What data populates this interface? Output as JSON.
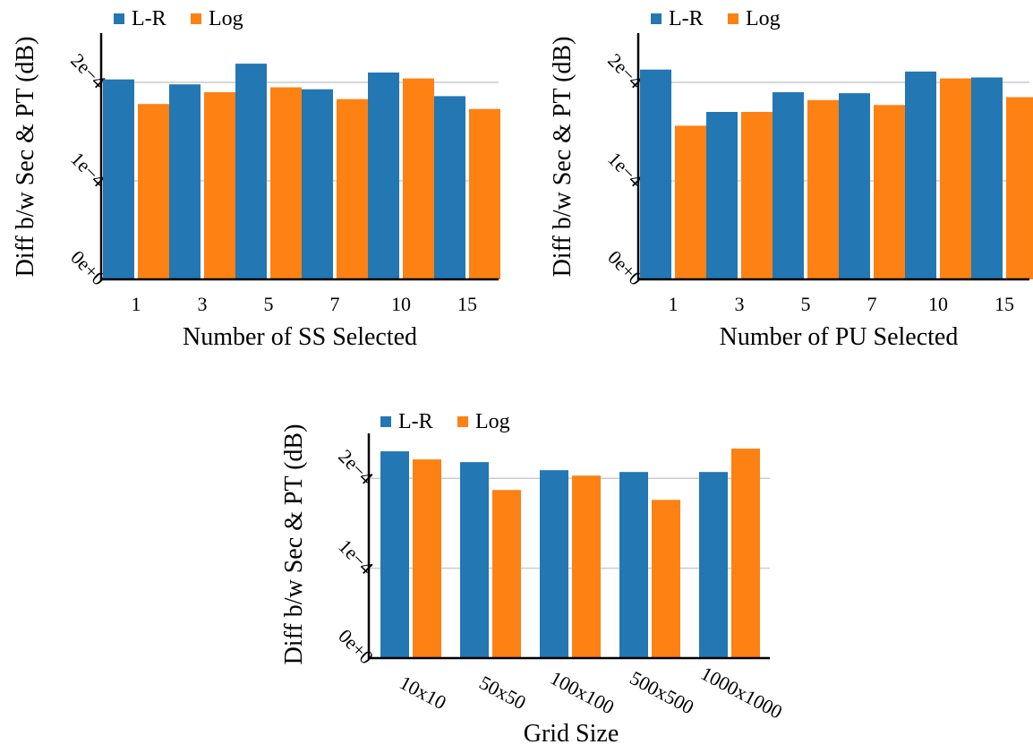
{
  "legend": {
    "series_a": "L-R",
    "series_b": "Log"
  },
  "colors": {
    "series_a": "#2377b3",
    "series_b": "#fd8113",
    "grid": "#cccccc",
    "axis": "#000000"
  },
  "chart_data": [
    {
      "type": "bar",
      "xlabel": "Number of SS Selected",
      "ylabel": "Diff b/w Sec & PT (dB)",
      "ylim": [
        0,
        0.00025
      ],
      "ytick_values": [
        0,
        0.0001,
        0.0002
      ],
      "ytick_labels": [
        "0e+0",
        "1e−4",
        "2e−4"
      ],
      "grid": "horizontal",
      "legend_position": "top-left",
      "categories": [
        "1",
        "3",
        "5",
        "7",
        "10",
        "15"
      ],
      "series": [
        {
          "name": "L-R",
          "values": [
            0.000203,
            0.000198,
            0.000219,
            0.000193,
            0.00021,
            0.000186
          ]
        },
        {
          "name": "Log",
          "values": [
            0.000178,
            0.00019,
            0.000195,
            0.000183,
            0.000204,
            0.000173
          ]
        }
      ]
    },
    {
      "type": "bar",
      "xlabel": "Number of PU Selected",
      "ylabel": "Diff b/w Sec & PT (dB)",
      "ylim": [
        0,
        0.00025
      ],
      "ytick_values": [
        0,
        0.0001,
        0.0002
      ],
      "ytick_labels": [
        "0e+0",
        "1e−4",
        "2e−4"
      ],
      "grid": "horizontal",
      "legend_position": "top-left",
      "categories": [
        "1",
        "3",
        "5",
        "7",
        "10",
        "15"
      ],
      "series": [
        {
          "name": "L-R",
          "values": [
            0.000213,
            0.00017,
            0.00019,
            0.000189,
            0.000211,
            0.000205
          ]
        },
        {
          "name": "Log",
          "values": [
            0.000156,
            0.00017,
            0.000182,
            0.000177,
            0.000204,
            0.000185
          ]
        }
      ]
    },
    {
      "type": "bar",
      "xlabel": "Grid Size",
      "ylabel": "Diff b/w Sec & PT (dB)",
      "ylim": [
        0,
        0.00025
      ],
      "ytick_values": [
        0,
        0.0001,
        0.0002
      ],
      "ytick_labels": [
        "0e+0",
        "1e−4",
        "2e−4"
      ],
      "grid": "horizontal",
      "legend_position": "top-left",
      "categories": [
        "10x10",
        "50x50",
        "100x100",
        "500x500",
        "1000x1000"
      ],
      "series": [
        {
          "name": "L-R",
          "values": [
            0.00023,
            0.000218,
            0.000209,
            0.000207,
            0.000207
          ]
        },
        {
          "name": "Log",
          "values": [
            0.000221,
            0.000187,
            0.000203,
            0.000176,
            0.000233
          ]
        }
      ]
    }
  ]
}
